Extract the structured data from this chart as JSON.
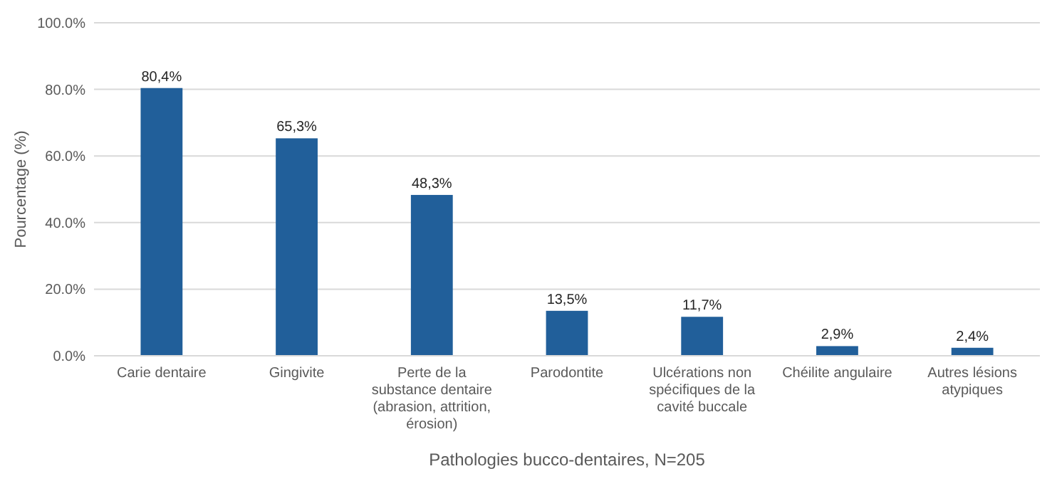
{
  "chart_data": {
    "type": "bar",
    "xlabel": "Pathologies bucco-dentaires, N=205",
    "ylabel": "Pourcentage (%)",
    "categories": [
      "Carie dentaire",
      "Gingivite",
      "Perte de la substance dentaire (abrasion, attrition, érosion)",
      "Parodontite",
      "Ulcérations non spécifiques de la cavité buccale",
      "Chéilite angulaire",
      "Autres lésions atypiques"
    ],
    "values": [
      80.4,
      65.3,
      48.3,
      13.5,
      11.7,
      2.9,
      2.4
    ],
    "value_labels": [
      "80,4%",
      "65,3%",
      "48,3%",
      "13,5%",
      "11,7%",
      "2,9%",
      "2,4%"
    ],
    "color": "#215f9a",
    "ylim": [
      0,
      100
    ],
    "yticks": [
      {
        "value": 0,
        "label": "0.0%"
      },
      {
        "value": 20,
        "label": "20.0%"
      },
      {
        "value": 40,
        "label": "40.0%"
      },
      {
        "value": 60,
        "label": "60.0%"
      },
      {
        "value": 80,
        "label": "80.0%"
      },
      {
        "value": 100,
        "label": "100.0%"
      }
    ],
    "grid": "y"
  }
}
